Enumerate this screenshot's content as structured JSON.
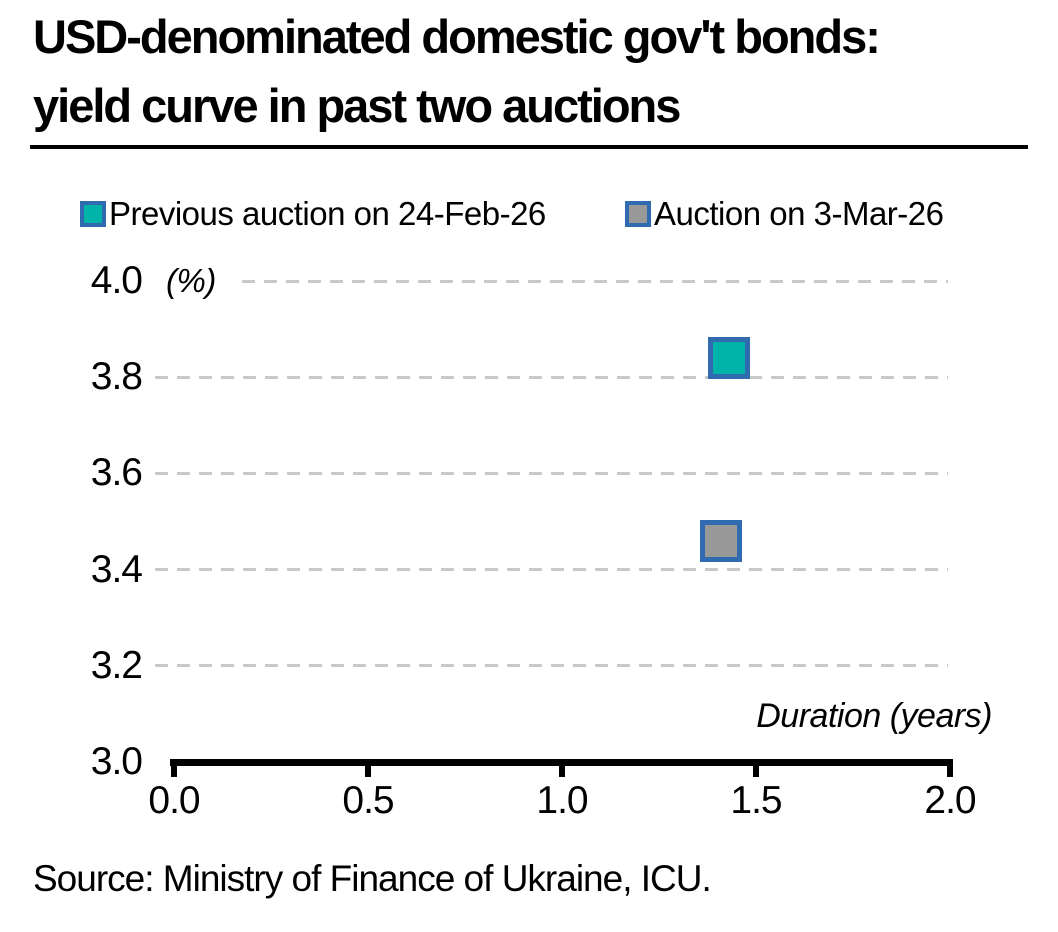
{
  "title": {
    "line1": "USD-denominated domestic gov't bonds:",
    "line2": "yield curve in past two auctions"
  },
  "legend": {
    "items": [
      {
        "label": "Previous auction on 24-Feb-26",
        "swatch_fill": "#00b4a9",
        "swatch_border": "#2f6bae"
      },
      {
        "label": "Auction on 3-Mar-26",
        "swatch_fill": "#999999",
        "swatch_border": "#2f6bae"
      }
    ]
  },
  "source": "Source: Ministry of Finance of Ukraine, ICU.",
  "colors": {
    "axis": "#000000",
    "gridline": "#c9c9c9",
    "teal": "#00b4a9",
    "gray": "#999999",
    "marker_border": "#2f6bae"
  },
  "chart_data": {
    "type": "scatter",
    "title": "USD-denominated domestic gov't bonds: yield curve in past two auctions",
    "xlabel": "Duration (years)",
    "ylabel": "(%)",
    "xlim": [
      0.0,
      2.0
    ],
    "ylim": [
      3.0,
      4.0
    ],
    "x_ticks": [
      {
        "value": 0.0,
        "label": "0.0"
      },
      {
        "value": 0.5,
        "label": "0.5"
      },
      {
        "value": 1.0,
        "label": "1.0"
      },
      {
        "value": 1.5,
        "label": "1.5"
      },
      {
        "value": 2.0,
        "label": "2.0"
      }
    ],
    "y_ticks": [
      {
        "value": 3.0,
        "label": "3.0"
      },
      {
        "value": 3.2,
        "label": "3.2"
      },
      {
        "value": 3.4,
        "label": "3.4"
      },
      {
        "value": 3.6,
        "label": "3.6"
      },
      {
        "value": 3.8,
        "label": "3.8"
      },
      {
        "value": 4.0,
        "label": "4.0"
      }
    ],
    "grid": "horizontal-dashed",
    "legend_position": "top",
    "series": [
      {
        "name": "Previous auction on 24-Feb-26",
        "marker": "square",
        "fill": "#00b4a9",
        "border": "#2f6bae",
        "points": [
          {
            "x": 1.43,
            "y": 3.84
          }
        ]
      },
      {
        "name": "Auction on 3-Mar-26",
        "marker": "square",
        "fill": "#999999",
        "border": "#2f6bae",
        "points": [
          {
            "x": 1.41,
            "y": 3.46
          }
        ]
      }
    ]
  }
}
